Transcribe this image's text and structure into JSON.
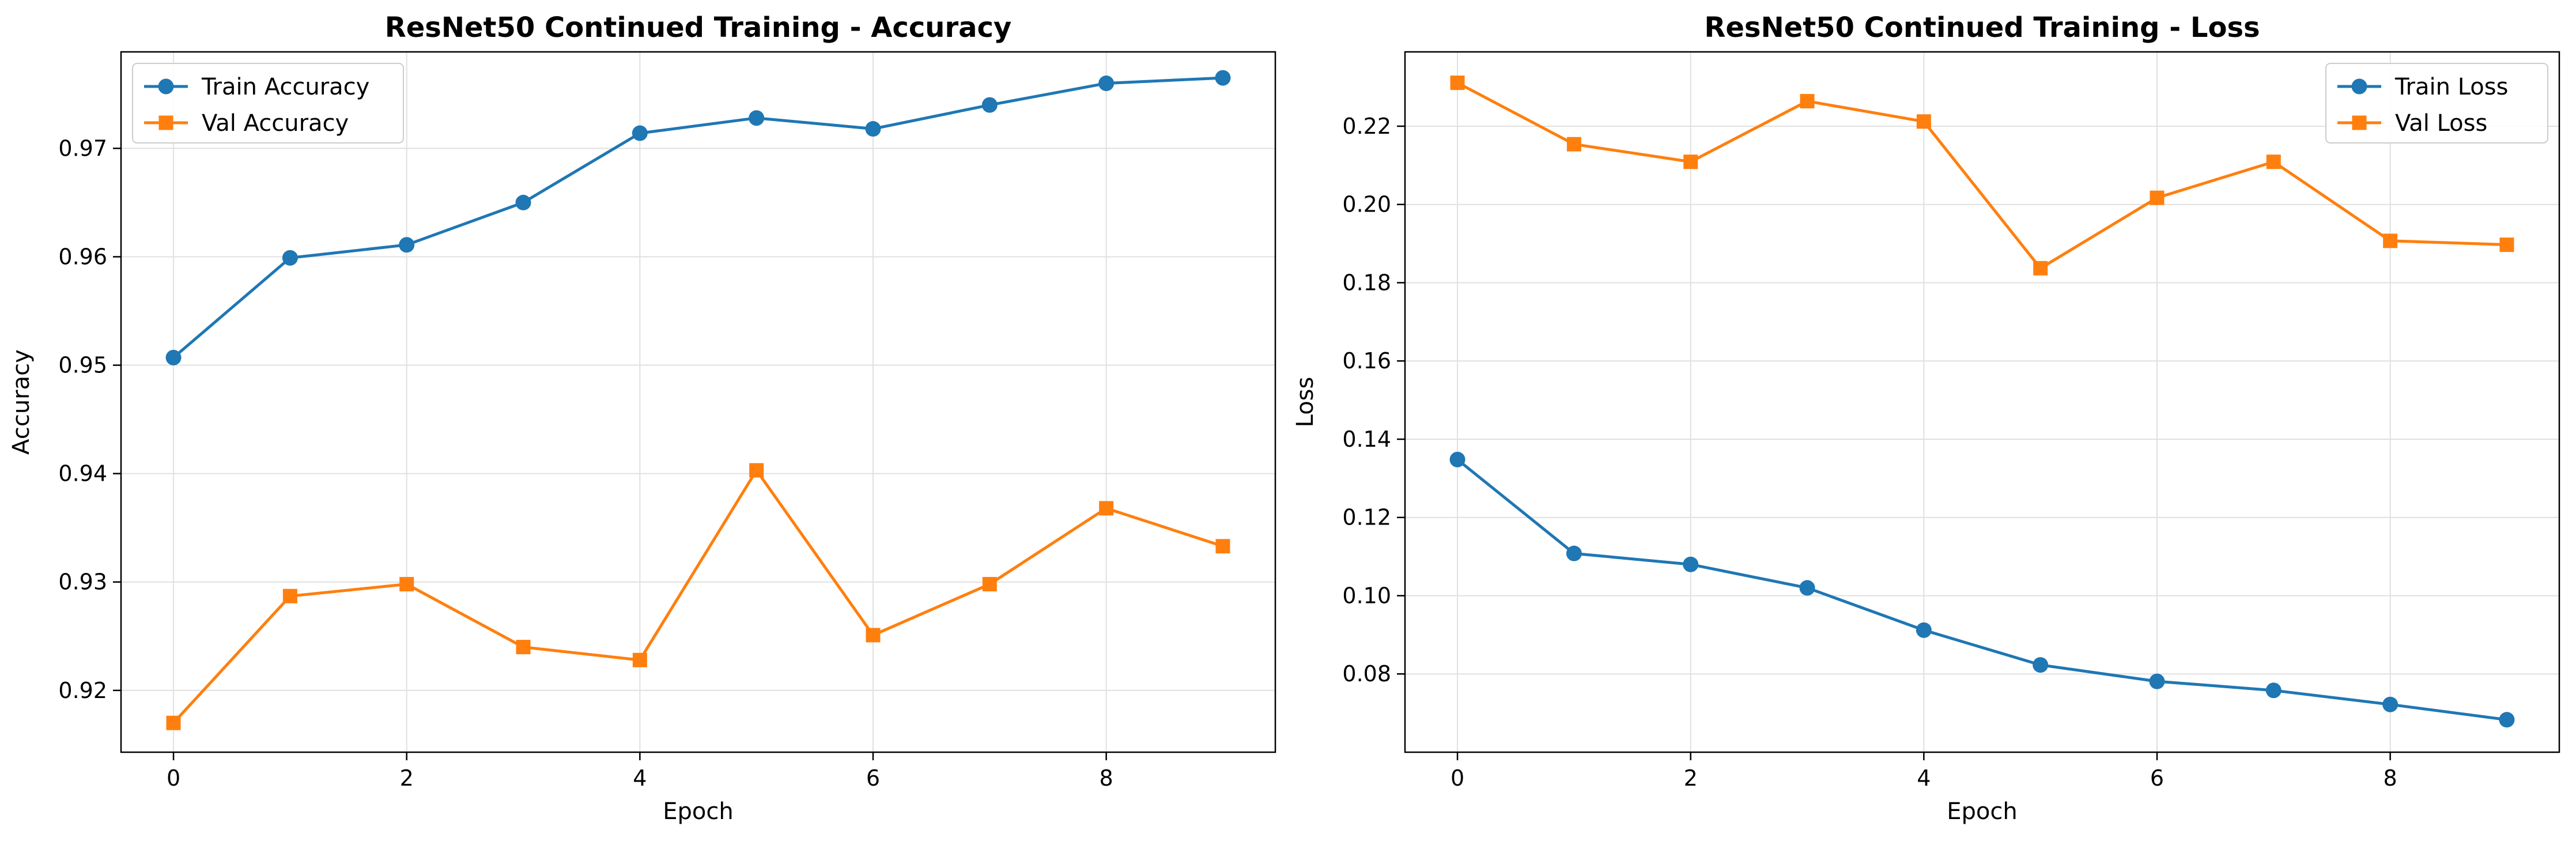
{
  "chart_data": [
    {
      "type": "line",
      "title": "ResNet50 Continued Training - Accuracy",
      "xlabel": "Epoch",
      "ylabel": "Accuracy",
      "x": [
        0,
        1,
        2,
        3,
        4,
        5,
        6,
        7,
        8,
        9
      ],
      "xlim": [
        -0.45,
        9.45
      ],
      "ylim": [
        0.9143,
        0.9789
      ],
      "xticks": [
        0,
        2,
        4,
        6,
        8
      ],
      "yticks": [
        0.92,
        0.93,
        0.94,
        0.95,
        0.96,
        0.97
      ],
      "xtick_labels": [
        "0",
        "2",
        "4",
        "6",
        "8"
      ],
      "ytick_labels": [
        "0.92",
        "0.93",
        "0.94",
        "0.95",
        "0.96",
        "0.97"
      ],
      "grid": true,
      "legend_position": "top-left",
      "series": [
        {
          "name": "Train Accuracy",
          "color": "#1f77b4",
          "marker": "circle",
          "values": [
            0.9507,
            0.9599,
            0.9611,
            0.965,
            0.9714,
            0.9728,
            0.9718,
            0.974,
            0.976,
            0.9765
          ]
        },
        {
          "name": "Val Accuracy",
          "color": "#ff7f0e",
          "marker": "square",
          "values": [
            0.917,
            0.9287,
            0.9298,
            0.924,
            0.9228,
            0.9403,
            0.9251,
            0.9298,
            0.9368,
            0.9333
          ]
        }
      ]
    },
    {
      "type": "line",
      "title": "ResNet50 Continued Training - Loss",
      "xlabel": "Epoch",
      "ylabel": "Loss",
      "x": [
        0,
        1,
        2,
        3,
        4,
        5,
        6,
        7,
        8,
        9
      ],
      "xlim": [
        -0.45,
        9.45
      ],
      "ylim": [
        0.06,
        0.239
      ],
      "xticks": [
        0,
        2,
        4,
        6,
        8
      ],
      "yticks": [
        0.08,
        0.1,
        0.12,
        0.14,
        0.16,
        0.18,
        0.2,
        0.22
      ],
      "xtick_labels": [
        "0",
        "2",
        "4",
        "6",
        "8"
      ],
      "ytick_labels": [
        "0.08",
        "0.10",
        "0.12",
        "0.14",
        "0.16",
        "0.18",
        "0.20",
        "0.22"
      ],
      "grid": true,
      "legend_position": "top-right",
      "series": [
        {
          "name": "Train Loss",
          "color": "#1f77b4",
          "marker": "circle",
          "values": [
            0.1348,
            0.1108,
            0.108,
            0.102,
            0.0912,
            0.0823,
            0.0781,
            0.0758,
            0.0722,
            0.0683
          ]
        },
        {
          "name": "Val Loss",
          "color": "#ff7f0e",
          "marker": "square",
          "values": [
            0.2311,
            0.2154,
            0.2109,
            0.2264,
            0.2212,
            0.1837,
            0.2017,
            0.2109,
            0.1907,
            0.1897
          ]
        }
      ]
    }
  ]
}
